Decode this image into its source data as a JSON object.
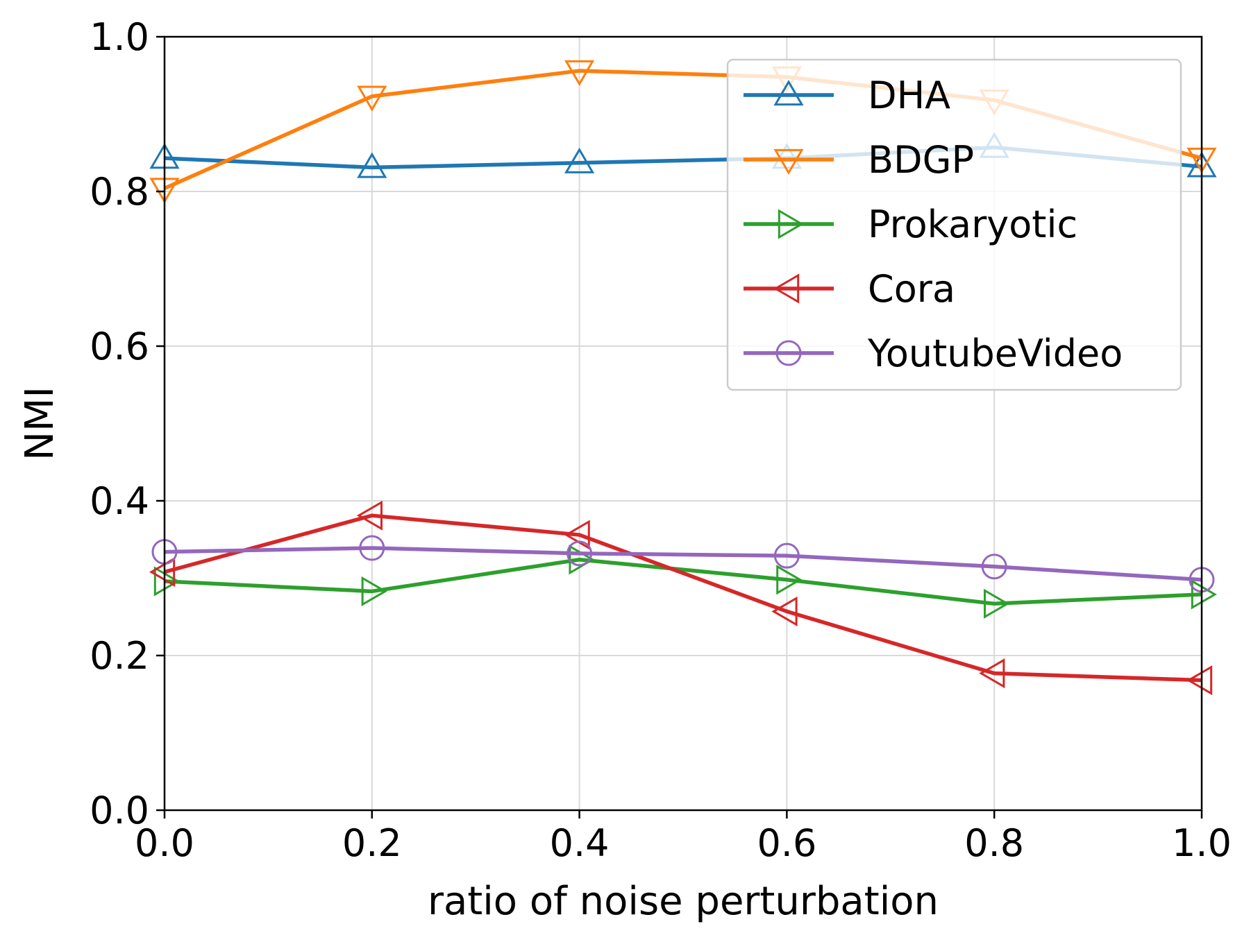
{
  "chart_data": {
    "type": "line",
    "xlabel": "ratio of noise perturbation",
    "ylabel": "NMI",
    "xlim": [
      0.0,
      1.0
    ],
    "ylim": [
      0.0,
      1.0
    ],
    "x": [
      0.0,
      0.2,
      0.4,
      0.6,
      0.8,
      1.0
    ],
    "xticks": [
      "0.0",
      "0.2",
      "0.4",
      "0.6",
      "0.8",
      "1.0"
    ],
    "yticks": [
      "0.0",
      "0.2",
      "0.4",
      "0.6",
      "0.8",
      "1.0"
    ],
    "grid": true,
    "legend_position": "top-right",
    "series": [
      {
        "name": "DHA",
        "color": "#1f77b4",
        "marker": "triangle-up",
        "values": [
          0.843,
          0.831,
          0.837,
          0.843,
          0.857,
          0.832
        ]
      },
      {
        "name": "BDGP",
        "color": "#ff7f0e",
        "marker": "triangle-down",
        "values": [
          0.804,
          0.923,
          0.956,
          0.948,
          0.918,
          0.843
        ]
      },
      {
        "name": "Prokaryotic",
        "color": "#2ca02c",
        "marker": "triangle-right",
        "values": [
          0.296,
          0.283,
          0.324,
          0.298,
          0.267,
          0.279
        ]
      },
      {
        "name": "Cora",
        "color": "#d62728",
        "marker": "triangle-left",
        "values": [
          0.308,
          0.381,
          0.356,
          0.257,
          0.177,
          0.168
        ]
      },
      {
        "name": "YoutubeVideo",
        "color": "#9467bd",
        "marker": "circle",
        "values": [
          0.334,
          0.339,
          0.332,
          0.329,
          0.315,
          0.298
        ]
      }
    ]
  }
}
